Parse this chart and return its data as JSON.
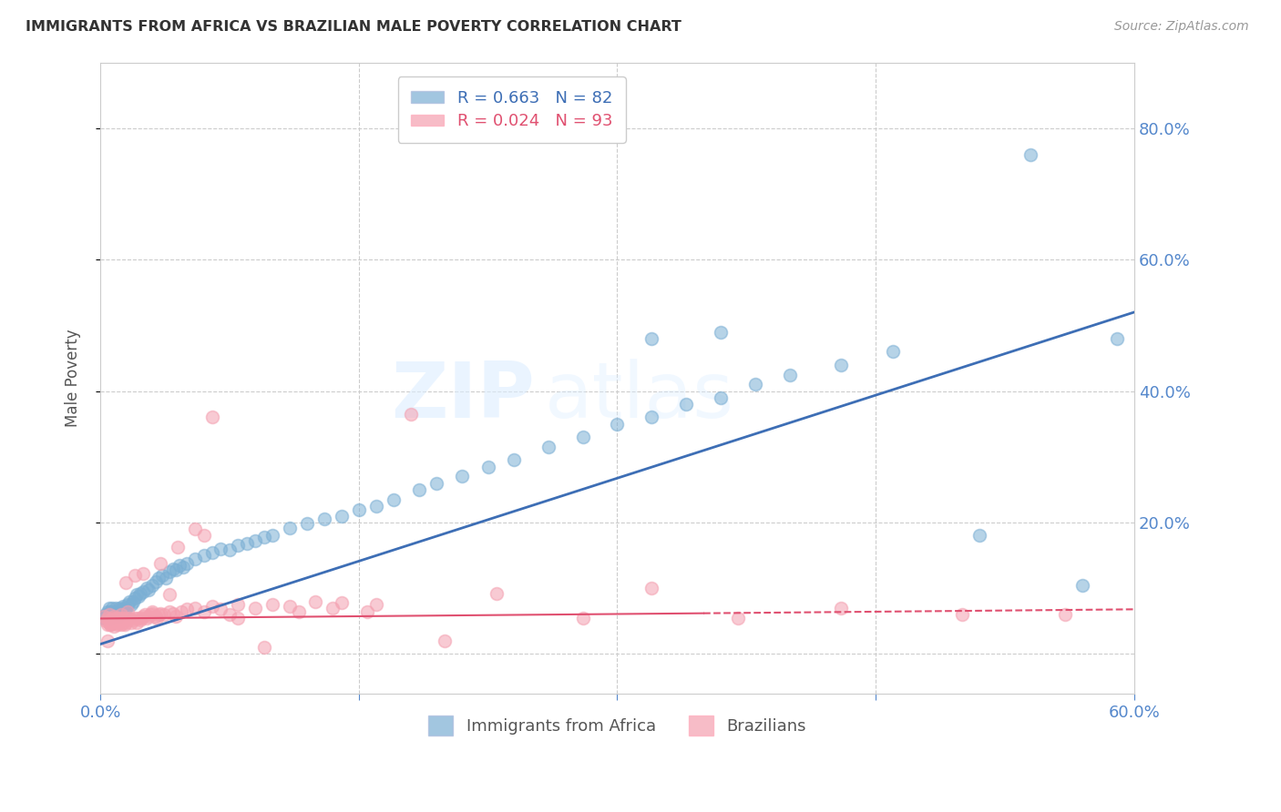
{
  "title": "IMMIGRANTS FROM AFRICA VS BRAZILIAN MALE POVERTY CORRELATION CHART",
  "source": "Source: ZipAtlas.com",
  "ylabel": "Male Poverty",
  "y_ticks": [
    0.0,
    0.2,
    0.4,
    0.6,
    0.8
  ],
  "x_range": [
    0.0,
    0.6
  ],
  "y_range": [
    -0.06,
    0.9
  ],
  "legend_label1": "Immigrants from Africa",
  "legend_label2": "Brazilians",
  "blue_color": "#7BAFD4",
  "pink_color": "#F4A0B0",
  "blue_line_color": "#3D6EB5",
  "pink_line_color": "#E05070",
  "watermark_zip": "ZIP",
  "watermark_atlas": "atlas",
  "axis_tick_color": "#5588CC",
  "R1": 0.663,
  "N1": 82,
  "R2": 0.024,
  "N2": 93,
  "blue_scatter_x": [
    0.002,
    0.003,
    0.004,
    0.005,
    0.005,
    0.006,
    0.006,
    0.007,
    0.007,
    0.008,
    0.008,
    0.009,
    0.009,
    0.01,
    0.01,
    0.011,
    0.011,
    0.012,
    0.012,
    0.013,
    0.014,
    0.015,
    0.016,
    0.017,
    0.018,
    0.019,
    0.02,
    0.021,
    0.022,
    0.023,
    0.025,
    0.027,
    0.028,
    0.03,
    0.032,
    0.034,
    0.036,
    0.038,
    0.04,
    0.042,
    0.044,
    0.046,
    0.048,
    0.05,
    0.055,
    0.06,
    0.065,
    0.07,
    0.075,
    0.08,
    0.085,
    0.09,
    0.095,
    0.1,
    0.11,
    0.12,
    0.13,
    0.14,
    0.15,
    0.16,
    0.17,
    0.185,
    0.195,
    0.21,
    0.225,
    0.24,
    0.26,
    0.28,
    0.3,
    0.32,
    0.34,
    0.36,
    0.38,
    0.4,
    0.43,
    0.46,
    0.51,
    0.54,
    0.57,
    0.59,
    0.32,
    0.36
  ],
  "blue_scatter_y": [
    0.055,
    0.06,
    0.065,
    0.058,
    0.07,
    0.055,
    0.065,
    0.06,
    0.07,
    0.058,
    0.065,
    0.06,
    0.07,
    0.065,
    0.058,
    0.06,
    0.07,
    0.065,
    0.068,
    0.072,
    0.07,
    0.068,
    0.075,
    0.08,
    0.075,
    0.08,
    0.085,
    0.09,
    0.088,
    0.092,
    0.095,
    0.1,
    0.098,
    0.105,
    0.11,
    0.115,
    0.12,
    0.115,
    0.125,
    0.13,
    0.128,
    0.135,
    0.132,
    0.138,
    0.145,
    0.15,
    0.155,
    0.16,
    0.158,
    0.165,
    0.168,
    0.172,
    0.178,
    0.18,
    0.192,
    0.198,
    0.205,
    0.21,
    0.22,
    0.225,
    0.235,
    0.25,
    0.26,
    0.27,
    0.285,
    0.295,
    0.315,
    0.33,
    0.35,
    0.36,
    0.38,
    0.39,
    0.41,
    0.425,
    0.44,
    0.46,
    0.18,
    0.76,
    0.105,
    0.48,
    0.48,
    0.49
  ],
  "pink_scatter_x": [
    0.002,
    0.003,
    0.004,
    0.004,
    0.005,
    0.005,
    0.006,
    0.006,
    0.007,
    0.007,
    0.008,
    0.008,
    0.009,
    0.009,
    0.01,
    0.01,
    0.011,
    0.011,
    0.012,
    0.012,
    0.013,
    0.013,
    0.014,
    0.014,
    0.015,
    0.015,
    0.016,
    0.017,
    0.018,
    0.019,
    0.02,
    0.021,
    0.022,
    0.023,
    0.024,
    0.025,
    0.026,
    0.027,
    0.028,
    0.029,
    0.03,
    0.032,
    0.033,
    0.034,
    0.035,
    0.037,
    0.04,
    0.042,
    0.044,
    0.047,
    0.05,
    0.055,
    0.06,
    0.065,
    0.07,
    0.08,
    0.09,
    0.1,
    0.11,
    0.125,
    0.14,
    0.16,
    0.18,
    0.2,
    0.23,
    0.28,
    0.32,
    0.37,
    0.43,
    0.5,
    0.56,
    0.015,
    0.025,
    0.035,
    0.045,
    0.055,
    0.065,
    0.08,
    0.095,
    0.115,
    0.135,
    0.155,
    0.02,
    0.03,
    0.04,
    0.06,
    0.075,
    0.01,
    0.012,
    0.016,
    0.008,
    0.006,
    0.004
  ],
  "pink_scatter_y": [
    0.058,
    0.05,
    0.055,
    0.045,
    0.048,
    0.06,
    0.052,
    0.045,
    0.055,
    0.048,
    0.05,
    0.042,
    0.055,
    0.048,
    0.052,
    0.045,
    0.055,
    0.048,
    0.052,
    0.045,
    0.055,
    0.048,
    0.052,
    0.045,
    0.055,
    0.048,
    0.052,
    0.055,
    0.048,
    0.052,
    0.055,
    0.048,
    0.055,
    0.052,
    0.055,
    0.058,
    0.06,
    0.055,
    0.058,
    0.06,
    0.062,
    0.058,
    0.055,
    0.06,
    0.062,
    0.06,
    0.065,
    0.062,
    0.058,
    0.065,
    0.068,
    0.07,
    0.065,
    0.072,
    0.068,
    0.075,
    0.07,
    0.075,
    0.072,
    0.08,
    0.078,
    0.075,
    0.365,
    0.02,
    0.092,
    0.055,
    0.1,
    0.055,
    0.07,
    0.06,
    0.06,
    0.108,
    0.122,
    0.138,
    0.162,
    0.19,
    0.36,
    0.055,
    0.01,
    0.065,
    0.07,
    0.065,
    0.12,
    0.065,
    0.09,
    0.18,
    0.06,
    0.055,
    0.06,
    0.065,
    0.058,
    0.045,
    0.02
  ]
}
